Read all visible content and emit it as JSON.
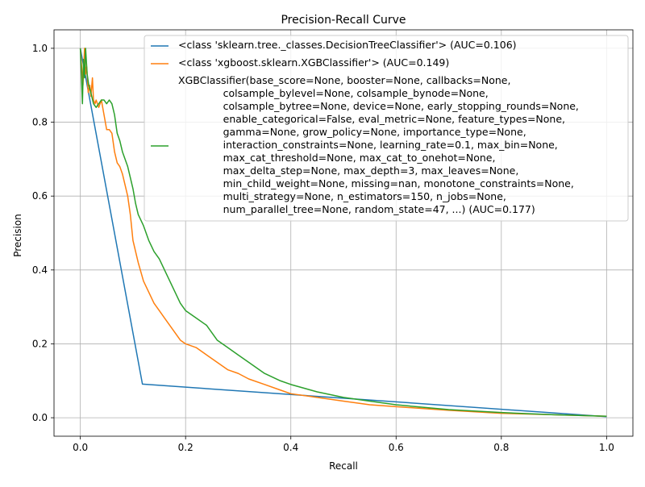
{
  "chart_data": {
    "type": "line",
    "title": "Precision-Recall Curve",
    "xlabel": "Recall",
    "ylabel": "Precision",
    "xlim": [
      -0.05,
      1.05
    ],
    "ylim": [
      -0.05,
      1.05
    ],
    "xticks": [
      0.0,
      0.2,
      0.4,
      0.6,
      0.8,
      1.0
    ],
    "yticks": [
      0.0,
      0.2,
      0.4,
      0.6,
      0.8,
      1.0
    ],
    "xtick_labels": [
      "0.0",
      "0.2",
      "0.4",
      "0.6",
      "0.8",
      "1.0"
    ],
    "ytick_labels": [
      "0.0",
      "0.2",
      "0.4",
      "0.6",
      "0.8",
      "1.0"
    ],
    "grid": true,
    "legend_position": "top-right",
    "series": [
      {
        "name": "<class 'sklearn.tree._classes.DecisionTreeClassifier'> (AUC=0.106)",
        "color": "#1f77b4",
        "x": [
          0.0,
          0.118,
          1.0
        ],
        "y": [
          1.0,
          0.091,
          0.003
        ]
      },
      {
        "name": "<class 'xgboost.sklearn.XGBClassifier'> (AUC=0.149)",
        "color": "#ff7f0e",
        "x": [
          0.0,
          0.005,
          0.008,
          0.01,
          0.012,
          0.015,
          0.018,
          0.02,
          0.023,
          0.025,
          0.028,
          0.03,
          0.035,
          0.04,
          0.045,
          0.05,
          0.055,
          0.06,
          0.065,
          0.07,
          0.075,
          0.08,
          0.085,
          0.09,
          0.095,
          0.1,
          0.11,
          0.12,
          0.13,
          0.14,
          0.15,
          0.16,
          0.17,
          0.18,
          0.19,
          0.2,
          0.22,
          0.24,
          0.26,
          0.28,
          0.3,
          0.32,
          0.35,
          0.38,
          0.4,
          0.45,
          0.5,
          0.55,
          0.6,
          0.7,
          0.8,
          0.9,
          1.0
        ],
        "y": [
          1.0,
          0.9,
          1.0,
          0.93,
          0.95,
          0.88,
          0.9,
          0.87,
          0.92,
          0.86,
          0.85,
          0.86,
          0.84,
          0.86,
          0.82,
          0.78,
          0.78,
          0.77,
          0.72,
          0.69,
          0.68,
          0.66,
          0.63,
          0.6,
          0.55,
          0.48,
          0.42,
          0.37,
          0.34,
          0.31,
          0.29,
          0.27,
          0.25,
          0.23,
          0.21,
          0.2,
          0.19,
          0.17,
          0.15,
          0.13,
          0.12,
          0.105,
          0.09,
          0.075,
          0.065,
          0.055,
          0.045,
          0.035,
          0.03,
          0.02,
          0.012,
          0.008,
          0.004
        ]
      },
      {
        "name": "XGBClassifier(base_score=None, booster=None, callbacks=None,\n              colsample_bylevel=None, colsample_bynode=None,\n              colsample_bytree=None, device=None, early_stopping_rounds=None,\n              enable_categorical=False, eval_metric=None, feature_types=None,\n              gamma=None, grow_policy=None, importance_type=None,\n              interaction_constraints=None, learning_rate=0.1, max_bin=None,\n              max_cat_threshold=None, max_cat_to_onehot=None,\n              max_delta_step=None, max_depth=3, max_leaves=None,\n              min_child_weight=None, missing=nan, monotone_constraints=None,\n              multi_strategy=None, n_estimators=150, n_jobs=None,\n              num_parallel_tree=None, random_state=47, ...) (AUC=0.177)",
        "color": "#2ca02c",
        "x": [
          0.0,
          0.004,
          0.006,
          0.008,
          0.01,
          0.013,
          0.016,
          0.02,
          0.025,
          0.03,
          0.035,
          0.04,
          0.045,
          0.05,
          0.055,
          0.06,
          0.065,
          0.07,
          0.075,
          0.08,
          0.085,
          0.09,
          0.095,
          0.1,
          0.105,
          0.11,
          0.12,
          0.13,
          0.14,
          0.15,
          0.16,
          0.17,
          0.18,
          0.19,
          0.2,
          0.22,
          0.24,
          0.26,
          0.28,
          0.3,
          0.32,
          0.35,
          0.38,
          0.4,
          0.45,
          0.5,
          0.55,
          0.6,
          0.7,
          0.8,
          0.9,
          1.0
        ],
        "y": [
          1.0,
          0.85,
          0.97,
          0.92,
          1.0,
          0.93,
          0.9,
          0.88,
          0.85,
          0.84,
          0.85,
          0.86,
          0.86,
          0.85,
          0.86,
          0.85,
          0.82,
          0.77,
          0.75,
          0.72,
          0.7,
          0.68,
          0.65,
          0.62,
          0.58,
          0.55,
          0.52,
          0.48,
          0.45,
          0.43,
          0.4,
          0.37,
          0.34,
          0.31,
          0.29,
          0.27,
          0.25,
          0.21,
          0.19,
          0.17,
          0.15,
          0.12,
          0.1,
          0.09,
          0.07,
          0.055,
          0.045,
          0.035,
          0.022,
          0.014,
          0.008,
          0.004
        ]
      }
    ]
  }
}
